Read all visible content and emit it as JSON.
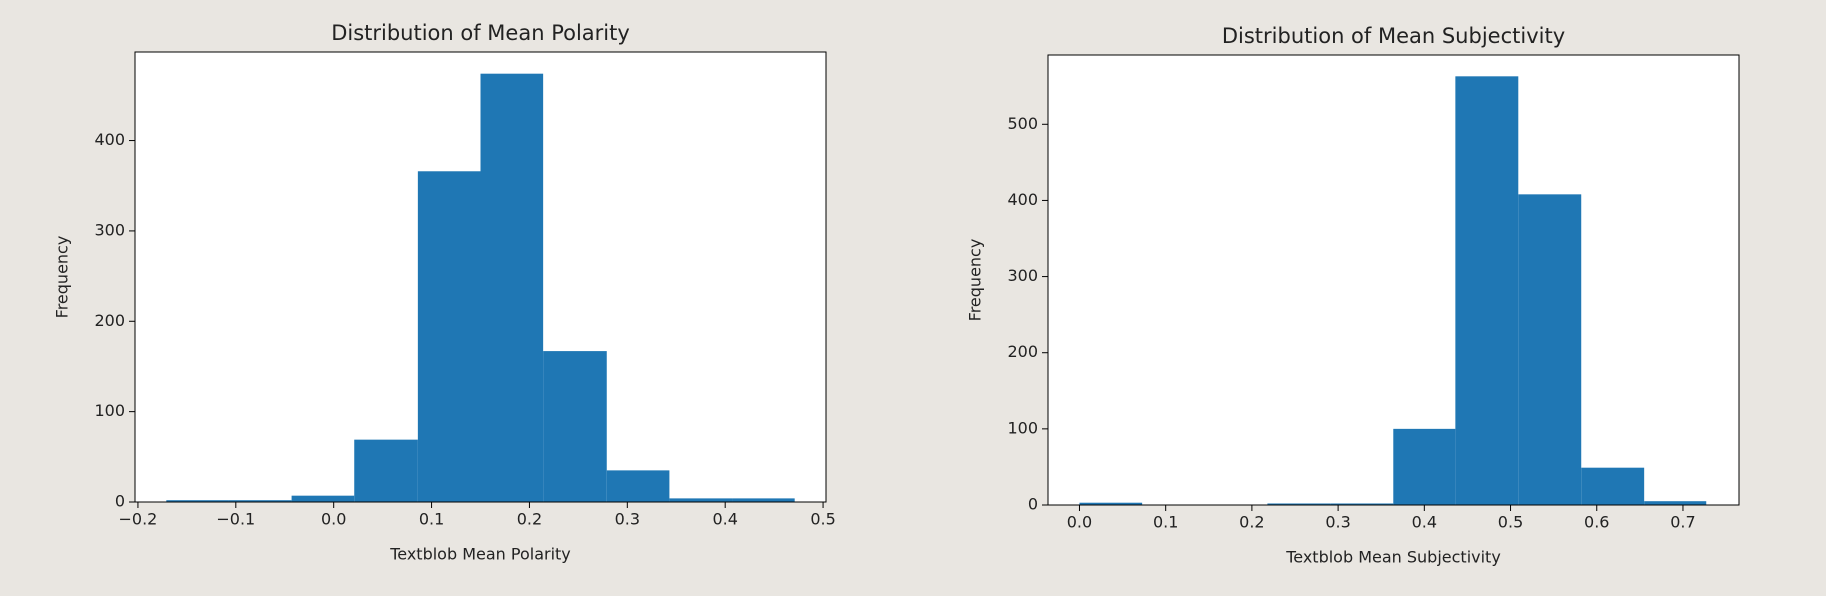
{
  "chart_data": [
    {
      "type": "histogram",
      "title": "Distribution of Mean Polarity",
      "x_label": "Textblob Mean Polarity",
      "y_label": "Frequency",
      "bins": [
        -0.171,
        -0.107,
        -0.043,
        0.021,
        0.086,
        0.15,
        0.214,
        0.279,
        0.343,
        0.407,
        0.471
      ],
      "values": [
        2,
        2,
        7,
        69,
        366,
        474,
        167,
        35,
        4,
        4
      ],
      "color": "#1f77b4",
      "xlim": [
        -0.203,
        0.503
      ],
      "ylim": [
        0,
        498
      ],
      "xticks": [
        {
          "value": -0.2,
          "label": "−0.2"
        },
        {
          "value": -0.1,
          "label": "−0.1"
        },
        {
          "value": 0,
          "label": "0.0"
        },
        0.1,
        0.2,
        0.3,
        0.4,
        0.5
      ],
      "yticks": [
        0,
        100,
        200,
        300,
        400
      ]
    },
    {
      "type": "histogram",
      "title": "Distribution of Mean Subjectivity",
      "x_label": "Textblob Mean Subjectivity",
      "y_label": "Frequency",
      "bins": [
        0,
        0.0727,
        0.145,
        0.218,
        0.291,
        0.364,
        0.436,
        0.509,
        0.582,
        0.655,
        0.727
      ],
      "values": [
        3,
        0,
        0,
        2,
        2,
        100,
        563,
        408,
        49,
        5
      ],
      "color": "#1f77b4",
      "xlim": [
        -0.0365,
        0.765
      ],
      "ylim": [
        0,
        591
      ],
      "xticks": [
        {
          "value": 0,
          "label": "0.0"
        },
        0.1,
        0.2,
        0.3,
        0.4,
        0.5,
        0.6,
        0.7
      ],
      "yticks": [
        0,
        100,
        200,
        300,
        400,
        500
      ]
    }
  ]
}
